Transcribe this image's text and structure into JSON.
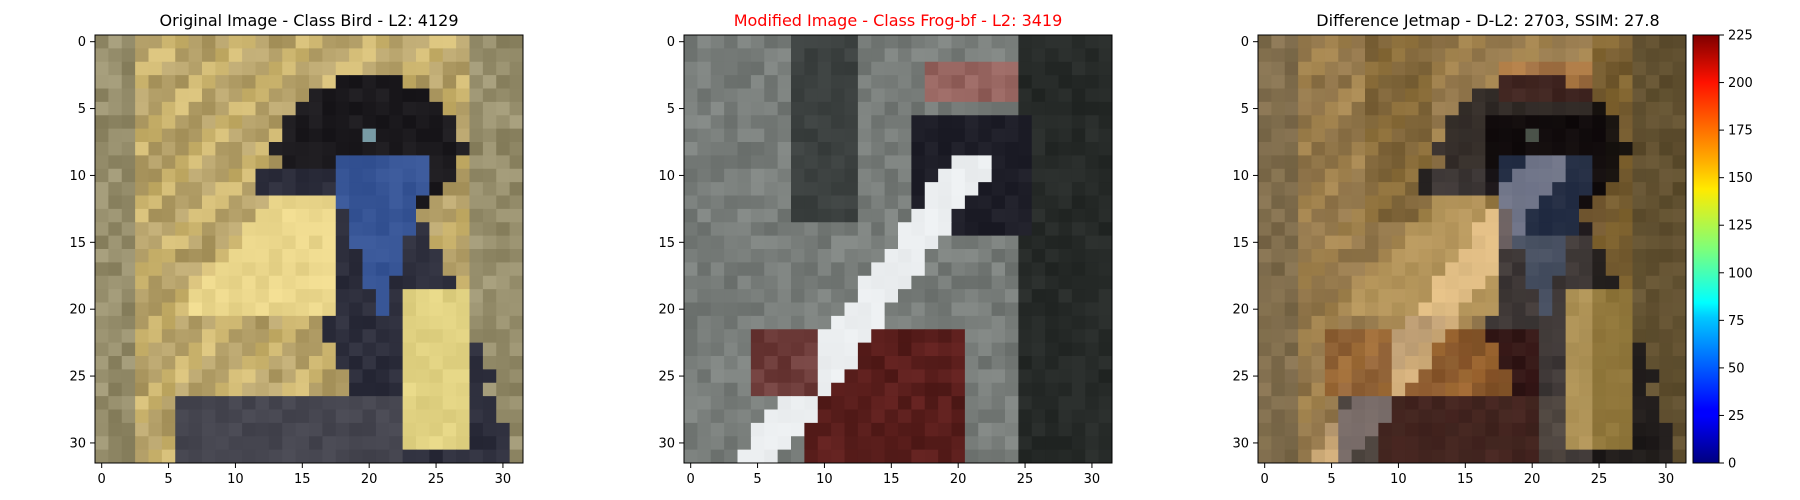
{
  "chart_data": [
    {
      "type": "heatmap",
      "title": "Original Image - Class Bird - L2: 4129",
      "title_color": "#000000",
      "image_size": 32,
      "x_ticks": [
        "0",
        "5",
        "10",
        "15",
        "20",
        "25",
        "30"
      ],
      "y_ticks": [
        "0",
        "5",
        "10",
        "15",
        "20",
        "25",
        "30"
      ],
      "content": "pixelated photo of a dark bird with a blue throat and a pale yellow wing patch on a yellow and gray background"
    },
    {
      "type": "heatmap",
      "title": "Modified Image - Class Frog-bf - L2: 3419",
      "title_color": "#ff0000",
      "image_size": 32,
      "x_ticks": [
        "0",
        "5",
        "10",
        "15",
        "20",
        "25",
        "30"
      ],
      "y_ticks": [
        "0",
        "5",
        "10",
        "15",
        "20",
        "25",
        "30"
      ],
      "content": "pixelated gray scene with a diagonal white stripe and dark red patches"
    },
    {
      "type": "heatmap",
      "title": "Difference Jetmap - D-L2: 2703, SSIM: 27.8",
      "title_color": "#000000",
      "image_size": 32,
      "x_ticks": [
        "0",
        "5",
        "10",
        "15",
        "20",
        "25",
        "30"
      ],
      "y_ticks": [
        "0",
        "5",
        "10",
        "15",
        "20",
        "25",
        "30"
      ],
      "colorbar": {
        "colormap": "jet",
        "range": [
          0,
          225
        ],
        "ticks": [
          "0",
          "25",
          "50",
          "75",
          "100",
          "125",
          "150",
          "175",
          "200",
          "225"
        ]
      },
      "content": "blend of the original bird and the modified stripe in brownish tones"
    }
  ]
}
